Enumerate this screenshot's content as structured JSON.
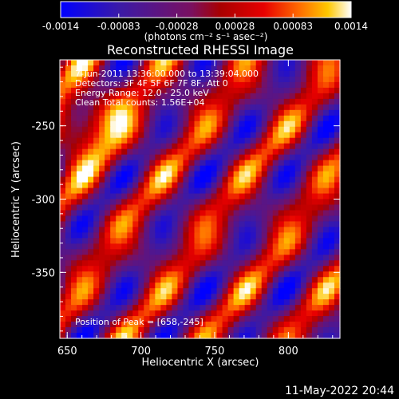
{
  "chart_data": {
    "type": "heatmap",
    "title": "Reconstructed RHESSI Image",
    "xlabel": "Heliocentric X (arcsec)",
    "ylabel": "Heliocentric Y (arcsec)",
    "xlim": [
      645,
      835
    ],
    "ylim": [
      -395,
      -205
    ],
    "xticks": [
      650,
      700,
      750,
      800
    ],
    "yticks": [
      -250,
      -300,
      -350
    ],
    "colorbar": {
      "ticks": [
        "-0.0014",
        "-0.00083",
        "-0.00028",
        "0.00028",
        "0.00083",
        "0.0014"
      ],
      "range": [
        -0.0014,
        0.0014
      ],
      "unit_label": "(photons cm⁻² s⁻¹ asec⁻²)",
      "colormap": "blue-purple-red-orange-yellow-white"
    },
    "annotations": {
      "time_range": "7-Jun-2011 13:36:00.000 to 13:39:04.000",
      "detectors": "Detectors: 3F 4F 5F 6F 7F 8F, Att 0",
      "energy": "Energy Range: 12.0 - 25.0 keV",
      "method": "Clean     Total counts: 1.56E+04",
      "peak": "Position of Peak = [658,-245]"
    },
    "peak": [
      658,
      -245
    ]
  },
  "footer_timestamp": "11-May-2022 20:44",
  "colors": {
    "background": "#000000",
    "text": "#ffffff"
  }
}
